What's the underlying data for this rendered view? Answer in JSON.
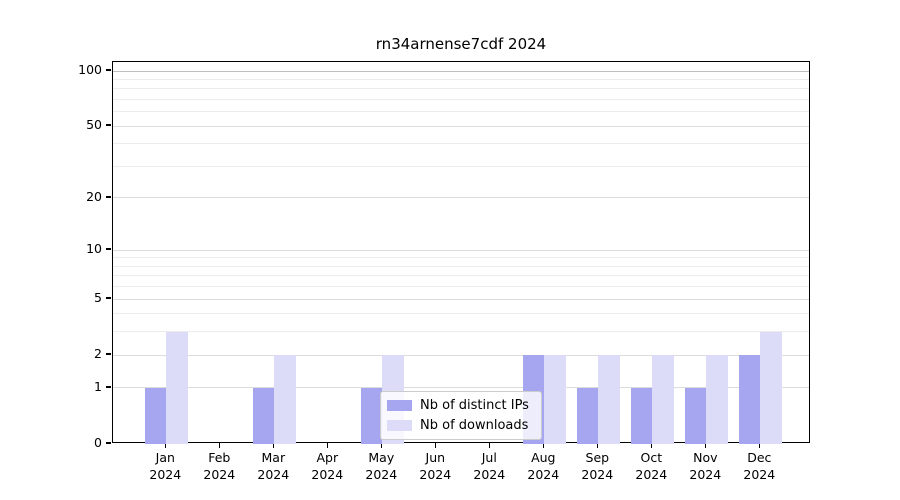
{
  "title": "rn34arnense7cdf 2024",
  "chart_data": {
    "type": "bar",
    "title": "rn34arnense7cdf 2024",
    "categories": [
      "Jan 2024",
      "Feb 2024",
      "Mar 2024",
      "Apr 2024",
      "May 2024",
      "Jun 2024",
      "Jul 2024",
      "Aug 2024",
      "Sep 2024",
      "Oct 2024",
      "Nov 2024",
      "Dec 2024"
    ],
    "series": [
      {
        "name": "Nb of distinct IPs",
        "color": "#a5a5f0",
        "values": [
          1,
          0,
          1,
          0,
          1,
          0,
          0,
          2,
          1,
          1,
          1,
          2
        ]
      },
      {
        "name": "Nb of downloads",
        "color": "#dcdcf8",
        "values": [
          3,
          0,
          2,
          0,
          2,
          0,
          0,
          2,
          2,
          2,
          2,
          3
        ]
      }
    ],
    "xlabel": "",
    "ylabel": "",
    "yscale": "log1p",
    "ylim": [
      0,
      112
    ],
    "yticks": [
      0,
      1,
      2,
      5,
      10,
      20,
      50,
      100
    ],
    "minor_yticks": [
      3,
      4,
      6,
      7,
      8,
      9,
      30,
      40,
      60,
      70,
      80,
      90
    ],
    "grid": "horizontal-major-and-minor",
    "legend_position": "inside-bottom-center"
  },
  "colors": {
    "background": "#ffffff",
    "axis": "#000000",
    "grid_major": "#dcdcdc",
    "grid_top": "#bfbfbf",
    "grid_minor": "#ededed",
    "bar_dark": "#a5a5f0",
    "bar_light": "#dcdcf8"
  }
}
